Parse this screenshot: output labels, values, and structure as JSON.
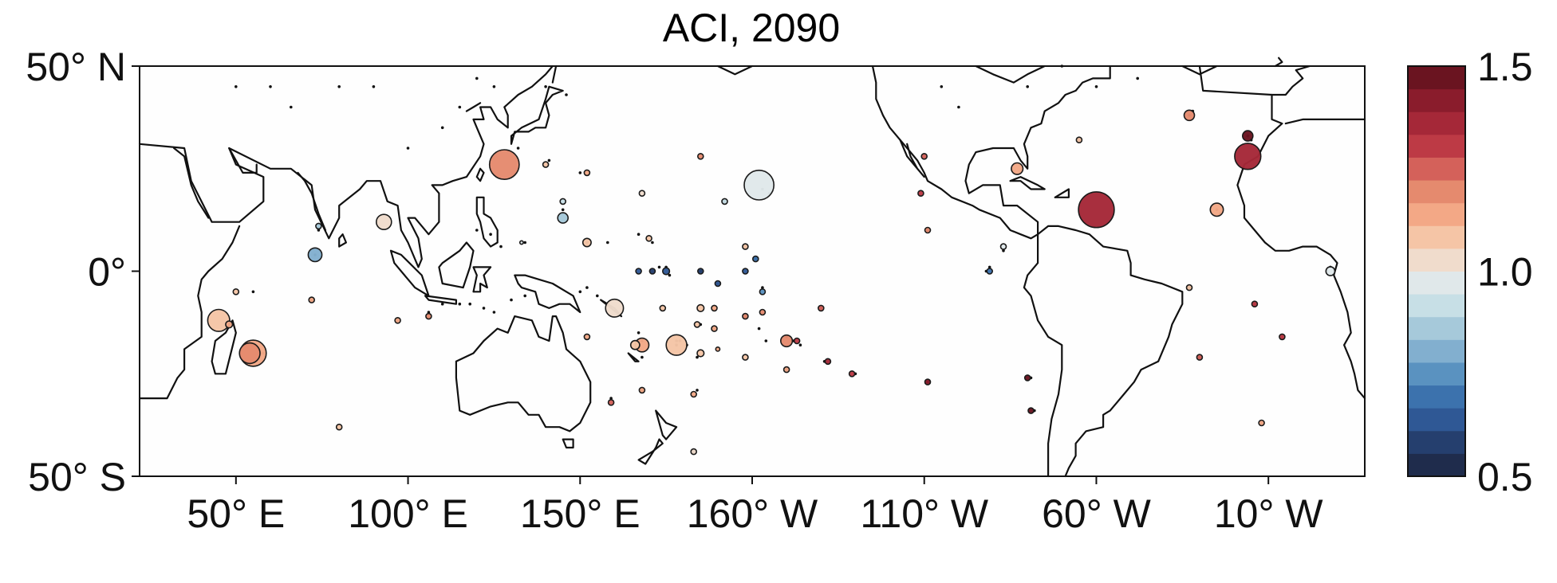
{
  "chart_data": {
    "type": "scatter",
    "subtype": "bubble-map",
    "title": "ACI, 2090",
    "x_axis": {
      "ticks": [
        {
          "lon": 50,
          "label": "50° E"
        },
        {
          "lon": 100,
          "label": "100° E"
        },
        {
          "lon": 150,
          "label": "150° E"
        },
        {
          "lon": 200,
          "label": "160° W"
        },
        {
          "lon": 250,
          "label": "110° W"
        },
        {
          "lon": 300,
          "label": "60° W"
        },
        {
          "lon": 350,
          "label": "10° W"
        }
      ],
      "range": [
        22,
        378
      ]
    },
    "y_axis": {
      "ticks": [
        {
          "lat": 50,
          "label": "50° N"
        },
        {
          "lat": 0,
          "label": "0°"
        },
        {
          "lat": -50,
          "label": "50° S"
        }
      ],
      "range": [
        -50,
        50
      ]
    },
    "colorbar": {
      "min": 0.5,
      "max": 1.5,
      "ticks": [
        {
          "value": 1.5,
          "label": "1.5"
        },
        {
          "value": 1.0,
          "label": "1.0"
        },
        {
          "value": 0.5,
          "label": "0.5"
        }
      ],
      "colors": [
        "#1f2c4c",
        "#253f6e",
        "#2f5895",
        "#3c72ad",
        "#5a92c0",
        "#82afcf",
        "#a6c9da",
        "#c7dfe6",
        "#e0e8ea",
        "#f0dccc",
        "#f5c5a6",
        "#f3a886",
        "#e58a6e",
        "#d4615a",
        "#bd3a45",
        "#a52838",
        "#8a1c2c",
        "#6a1420"
      ],
      "placement": "right"
    },
    "points": [
      {
        "lon": 45,
        "lat": -12,
        "r": 3.2,
        "aci": 1.08
      },
      {
        "lon": 55,
        "lat": -20,
        "r": 3.8,
        "aci": 1.15
      },
      {
        "lon": 54,
        "lat": -20,
        "r": 3.0,
        "aci": 1.18
      },
      {
        "lon": 50,
        "lat": -5,
        "r": 0.8,
        "aci": 1.1
      },
      {
        "lon": 48,
        "lat": -13,
        "r": 1.0,
        "aci": 1.12
      },
      {
        "lon": 73,
        "lat": 4,
        "r": 2.0,
        "aci": 0.82
      },
      {
        "lon": 74,
        "lat": 11,
        "r": 0.8,
        "aci": 0.88
      },
      {
        "lon": 72,
        "lat": -7,
        "r": 0.8,
        "aci": 1.12
      },
      {
        "lon": 80,
        "lat": -38,
        "r": 0.8,
        "aci": 1.1
      },
      {
        "lon": 97,
        "lat": -12,
        "r": 0.8,
        "aci": 1.15
      },
      {
        "lon": 106,
        "lat": -11,
        "r": 0.8,
        "aci": 1.22
      },
      {
        "lon": 93,
        "lat": 12,
        "r": 2.2,
        "aci": 1.05
      },
      {
        "lon": 128,
        "lat": 26,
        "r": 4.3,
        "aci": 1.18
      },
      {
        "lon": 140,
        "lat": 26,
        "r": 0.8,
        "aci": 1.08
      },
      {
        "lon": 133,
        "lat": 7,
        "r": 0.5,
        "aci": 0.96
      },
      {
        "lon": 145,
        "lat": 13,
        "r": 1.5,
        "aci": 0.88
      },
      {
        "lon": 145,
        "lat": 17,
        "r": 0.8,
        "aci": 0.94
      },
      {
        "lon": 152,
        "lat": 24,
        "r": 0.8,
        "aci": 1.12
      },
      {
        "lon": 152,
        "lat": 7,
        "r": 1.2,
        "aci": 1.06
      },
      {
        "lon": 168,
        "lat": 19,
        "r": 0.8,
        "aci": 1.04
      },
      {
        "lon": 170,
        "lat": 8,
        "r": 0.8,
        "aci": 1.08
      },
      {
        "lon": 185,
        "lat": 28,
        "r": 0.8,
        "aci": 1.22
      },
      {
        "lon": 202,
        "lat": 21,
        "r": 4.3,
        "aci": 0.98
      },
      {
        "lon": 192,
        "lat": 17,
        "r": 0.8,
        "aci": 0.94
      },
      {
        "lon": 198,
        "lat": 6,
        "r": 0.8,
        "aci": 1.06
      },
      {
        "lon": 201,
        "lat": 3,
        "r": 0.8,
        "aci": 0.7
      },
      {
        "lon": 198,
        "lat": 0,
        "r": 0.8,
        "aci": 0.65
      },
      {
        "lon": 203,
        "lat": -5,
        "r": 0.8,
        "aci": 0.74
      },
      {
        "lon": 167,
        "lat": 0,
        "r": 0.8,
        "aci": 0.65
      },
      {
        "lon": 171,
        "lat": 0,
        "r": 0.8,
        "aci": 0.6
      },
      {
        "lon": 175,
        "lat": 0,
        "r": 1.0,
        "aci": 0.62
      },
      {
        "lon": 185,
        "lat": 0,
        "r": 0.8,
        "aci": 0.56
      },
      {
        "lon": 190,
        "lat": -3,
        "r": 0.8,
        "aci": 0.65
      },
      {
        "lon": 160,
        "lat": -9,
        "r": 2.6,
        "aci": 1.04
      },
      {
        "lon": 152,
        "lat": -16,
        "r": 0.8,
        "aci": 1.15
      },
      {
        "lon": 168,
        "lat": -18,
        "r": 2.0,
        "aci": 1.12
      },
      {
        "lon": 166,
        "lat": -18,
        "r": 1.3,
        "aci": 1.08
      },
      {
        "lon": 178,
        "lat": -18,
        "r": 3.0,
        "aci": 1.1
      },
      {
        "lon": 174,
        "lat": -9,
        "r": 0.8,
        "aci": 1.08
      },
      {
        "lon": 185,
        "lat": -9,
        "r": 1.0,
        "aci": 1.1
      },
      {
        "lon": 184,
        "lat": -13,
        "r": 0.8,
        "aci": 1.1
      },
      {
        "lon": 189,
        "lat": -9,
        "r": 0.8,
        "aci": 1.12
      },
      {
        "lon": 189,
        "lat": -14,
        "r": 0.8,
        "aci": 1.12
      },
      {
        "lon": 185,
        "lat": -20,
        "r": 1.0,
        "aci": 1.1
      },
      {
        "lon": 190,
        "lat": -19,
        "r": 0.6,
        "aci": 1.12
      },
      {
        "lon": 183,
        "lat": -30,
        "r": 0.8,
        "aci": 1.12
      },
      {
        "lon": 168,
        "lat": -29,
        "r": 0.8,
        "aci": 1.15
      },
      {
        "lon": 159,
        "lat": -32,
        "r": 0.8,
        "aci": 1.25
      },
      {
        "lon": 183,
        "lat": -44,
        "r": 0.8,
        "aci": 1.02
      },
      {
        "lon": 198,
        "lat": -11,
        "r": 0.8,
        "aci": 1.18
      },
      {
        "lon": 203,
        "lat": -10,
        "r": 0.8,
        "aci": 1.18
      },
      {
        "lon": 210,
        "lat": -17,
        "r": 1.7,
        "aci": 1.18
      },
      {
        "lon": 198,
        "lat": -21,
        "r": 0.8,
        "aci": 1.1
      },
      {
        "lon": 210,
        "lat": -24,
        "r": 0.8,
        "aci": 1.12
      },
      {
        "lon": 213,
        "lat": -17,
        "r": 0.8,
        "aci": 1.3
      },
      {
        "lon": 220,
        "lat": -9,
        "r": 0.8,
        "aci": 1.25
      },
      {
        "lon": 222,
        "lat": -22,
        "r": 0.8,
        "aci": 1.35
      },
      {
        "lon": 229,
        "lat": -25,
        "r": 0.8,
        "aci": 1.3
      },
      {
        "lon": 250,
        "lat": 28,
        "r": 0.8,
        "aci": 1.25
      },
      {
        "lon": 249,
        "lat": 19,
        "r": 0.8,
        "aci": 1.32
      },
      {
        "lon": 251,
        "lat": 10,
        "r": 0.8,
        "aci": 1.18
      },
      {
        "lon": 251,
        "lat": -27,
        "r": 0.8,
        "aci": 1.42
      },
      {
        "lon": 280,
        "lat": -26,
        "r": 0.8,
        "aci": 1.45
      },
      {
        "lon": 281,
        "lat": -34,
        "r": 0.8,
        "aci": 1.48
      },
      {
        "lon": 269,
        "lat": 0,
        "r": 0.8,
        "aci": 0.68
      },
      {
        "lon": 273,
        "lat": 6,
        "r": 0.8,
        "aci": 0.96
      },
      {
        "lon": 277,
        "lat": 25,
        "r": 1.7,
        "aci": 1.12
      },
      {
        "lon": 295,
        "lat": 32,
        "r": 0.8,
        "aci": 1.08
      },
      {
        "lon": 300,
        "lat": 15,
        "r": 5.2,
        "aci": 1.38
      },
      {
        "lon": 327,
        "lat": 38,
        "r": 1.5,
        "aci": 1.22
      },
      {
        "lon": 344,
        "lat": 28,
        "r": 3.8,
        "aci": 1.38
      },
      {
        "lon": 344,
        "lat": 33,
        "r": 1.5,
        "aci": 1.48
      },
      {
        "lon": 335,
        "lat": 15,
        "r": 1.9,
        "aci": 1.16
      },
      {
        "lon": 327,
        "lat": -4,
        "r": 0.8,
        "aci": 1.1
      },
      {
        "lon": 330,
        "lat": -21,
        "r": 0.8,
        "aci": 1.25
      },
      {
        "lon": 346,
        "lat": -8,
        "r": 0.8,
        "aci": 1.32
      },
      {
        "lon": 354,
        "lat": -16,
        "r": 0.8,
        "aci": 1.3
      },
      {
        "lon": 348,
        "lat": -37,
        "r": 0.8,
        "aci": 1.12
      },
      {
        "lon": 368,
        "lat": 0,
        "r": 1.3,
        "aci": 0.96
      }
    ]
  }
}
